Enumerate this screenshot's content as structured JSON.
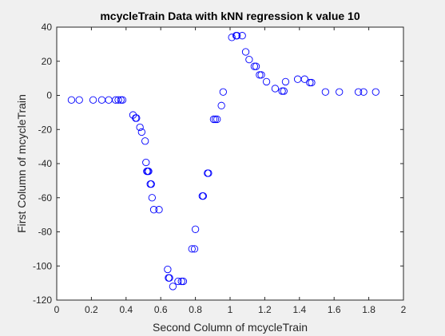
{
  "chart_data": {
    "type": "scatter",
    "title": "mcycleTrain Data with kNN regression k value 10",
    "xlabel": "Second Column of mcycleTrain",
    "ylabel": "First Column of mcycleTrain",
    "xlim": [
      0,
      2
    ],
    "ylim": [
      -120,
      40
    ],
    "xticks": [
      "0",
      "0.2",
      "0.4",
      "0.6",
      "0.8",
      "1",
      "1.2",
      "1.4",
      "1.6",
      "1.8",
      "2"
    ],
    "yticks": [
      "40",
      "20",
      "0",
      "-20",
      "-40",
      "-60",
      "-80",
      "-100",
      "-120"
    ],
    "grid": false,
    "marker": "circle",
    "marker_color": "#0000ff",
    "series": [
      {
        "x": [
          0.085,
          0.13,
          0.21,
          0.26,
          0.3,
          0.34,
          0.355,
          0.37,
          0.38,
          0.44,
          0.455,
          0.46,
          0.48,
          0.49,
          0.51,
          0.515,
          0.52,
          0.525,
          0.53,
          0.54,
          0.545,
          0.55,
          0.56,
          0.59,
          0.64,
          0.645,
          0.65,
          0.67,
          0.7,
          0.72,
          0.73,
          0.78,
          0.795,
          0.8,
          0.84,
          0.845,
          0.87,
          0.875,
          0.905,
          0.915,
          0.925,
          0.95,
          0.96,
          1.01,
          1.035,
          1.04,
          1.07,
          1.09,
          1.11,
          1.14,
          1.15,
          1.17,
          1.18,
          1.21,
          1.26,
          1.3,
          1.31,
          1.32,
          1.39,
          1.43,
          1.46,
          1.47,
          1.55,
          1.63,
          1.74,
          1.77,
          1.84
        ],
        "y": [
          -2.7,
          -2.7,
          -2.7,
          -2.7,
          -2.7,
          -2.7,
          -2.7,
          -2.7,
          -2.7,
          -11.5,
          -13.3,
          -13.3,
          -18.7,
          -21.5,
          -26.8,
          -39.3,
          -44.5,
          -44.5,
          -44.5,
          -52,
          -52,
          -60,
          -67,
          -67,
          -102,
          -107,
          -107,
          -112,
          -109,
          -109,
          -109,
          -90,
          -90,
          -78.5,
          -59,
          -59,
          -45.6,
          -45.6,
          -14,
          -14,
          -14,
          -6,
          2,
          34,
          35,
          35,
          35,
          25.5,
          21,
          17,
          17,
          12,
          12,
          8,
          4,
          2.5,
          2.5,
          8,
          9.5,
          9.5,
          7.5,
          7.5,
          2,
          2,
          2,
          2,
          2
        ]
      }
    ]
  }
}
